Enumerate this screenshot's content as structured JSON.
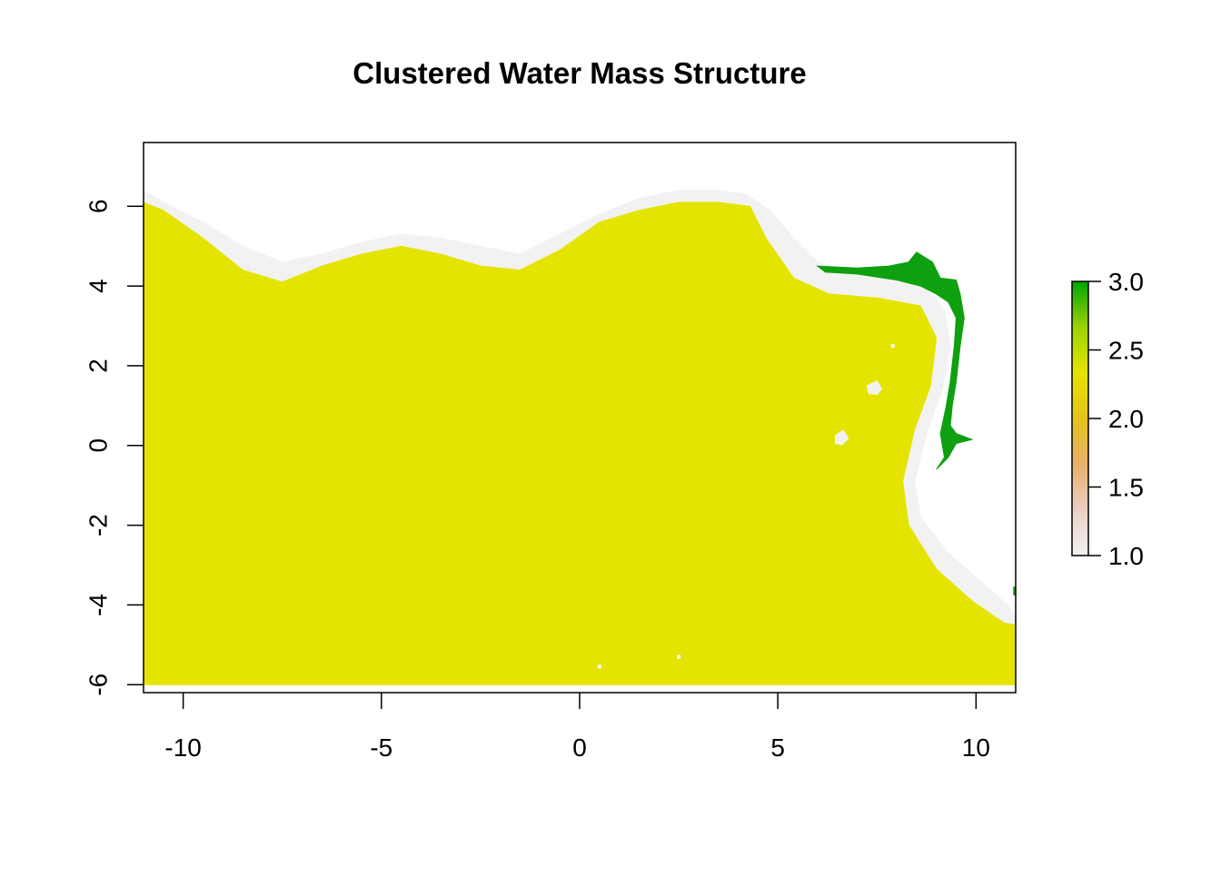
{
  "chart_data": {
    "type": "heatmap",
    "title": "Clustered Water Mass Structure",
    "xlabel": "",
    "ylabel": "",
    "xlim": [
      -11,
      11
    ],
    "ylim": [
      -6.2,
      7.6
    ],
    "x_ticks": [
      -10,
      -5,
      0,
      5,
      10
    ],
    "x_tick_labels": [
      "-10",
      "-5",
      "0",
      "5",
      "10"
    ],
    "y_ticks": [
      -6,
      -4,
      -2,
      0,
      2,
      4,
      6
    ],
    "y_tick_labels": [
      "-6",
      "-4",
      "-2",
      "0",
      "2",
      "4",
      "6"
    ],
    "legend": {
      "placement": "right",
      "range": [
        1.0,
        3.0
      ],
      "ticks": [
        1.0,
        1.5,
        2.0,
        2.5,
        3.0
      ],
      "tick_labels": [
        "1.0",
        "1.5",
        "2.0",
        "2.5",
        "3.0"
      ],
      "colors": [
        "#f2f2f2",
        "#eccfc4",
        "#e8b06a",
        "#e6c21a",
        "#e5e400",
        "#9cd200",
        "#00a600"
      ]
    },
    "clusters": [
      {
        "value": 1,
        "color": "#f2f2f2"
      },
      {
        "value": 2,
        "color": "#e5e400"
      },
      {
        "value": 3,
        "color": "#0fa00f"
      }
    ],
    "regions": [
      {
        "cluster": 1,
        "outline": [
          [
            -11,
            6.4
          ],
          [
            -10.5,
            6.1
          ],
          [
            -9.5,
            5.6
          ],
          [
            -8.5,
            5.0
          ],
          [
            -7.5,
            4.6
          ],
          [
            -6.5,
            4.8
          ],
          [
            -5.5,
            5.1
          ],
          [
            -4.5,
            5.3
          ],
          [
            -3.5,
            5.2
          ],
          [
            -2.5,
            5.0
          ],
          [
            -1.5,
            4.8
          ],
          [
            -0.5,
            5.3
          ],
          [
            0.5,
            5.8
          ],
          [
            1.5,
            6.2
          ],
          [
            2.5,
            6.4
          ],
          [
            3.5,
            6.4
          ],
          [
            4.2,
            6.3
          ],
          [
            4.8,
            5.9
          ],
          [
            5.4,
            5.2
          ],
          [
            6.0,
            4.6
          ],
          [
            7.0,
            4.3
          ],
          [
            8.0,
            4.15
          ],
          [
            8.7,
            4.0
          ],
          [
            9.2,
            3.4
          ],
          [
            9.35,
            2.5
          ],
          [
            9.15,
            1.4
          ],
          [
            8.75,
            0.3
          ],
          [
            8.45,
            -0.9
          ],
          [
            8.6,
            -1.8
          ],
          [
            9.3,
            -2.7
          ],
          [
            10.1,
            -3.4
          ],
          [
            10.8,
            -4.0
          ],
          [
            11,
            -4.3
          ],
          [
            11,
            -4.5
          ],
          [
            10.7,
            -4.45
          ],
          [
            9.9,
            -3.9
          ],
          [
            9.0,
            -3.1
          ],
          [
            8.3,
            -2.0
          ],
          [
            8.15,
            -0.9
          ],
          [
            8.45,
            0.4
          ],
          [
            8.85,
            1.5
          ],
          [
            9.0,
            2.7
          ],
          [
            8.6,
            3.5
          ],
          [
            7.5,
            3.7
          ],
          [
            6.3,
            3.8
          ],
          [
            5.4,
            4.2
          ],
          [
            4.7,
            5.2
          ],
          [
            4.3,
            6.0
          ],
          [
            3.5,
            6.1
          ],
          [
            2.5,
            6.1
          ],
          [
            1.5,
            5.9
          ],
          [
            0.5,
            5.6
          ],
          [
            -0.5,
            4.9
          ],
          [
            -1.5,
            4.4
          ],
          [
            -2.5,
            4.5
          ],
          [
            -3.5,
            4.8
          ],
          [
            -4.5,
            5.0
          ],
          [
            -5.5,
            4.8
          ],
          [
            -6.5,
            4.5
          ],
          [
            -7.5,
            4.1
          ],
          [
            -8.5,
            4.4
          ],
          [
            -9.5,
            5.2
          ],
          [
            -10.5,
            5.9
          ],
          [
            -11,
            6.1
          ]
        ]
      },
      {
        "cluster": 2,
        "outline": [
          [
            -11,
            6.1
          ],
          [
            -10.5,
            5.9
          ],
          [
            -9.5,
            5.2
          ],
          [
            -8.5,
            4.4
          ],
          [
            -7.5,
            4.1
          ],
          [
            -6.5,
            4.5
          ],
          [
            -5.5,
            4.8
          ],
          [
            -4.5,
            5.0
          ],
          [
            -3.5,
            4.8
          ],
          [
            -2.5,
            4.5
          ],
          [
            -1.5,
            4.4
          ],
          [
            -0.5,
            4.9
          ],
          [
            0.5,
            5.6
          ],
          [
            1.5,
            5.9
          ],
          [
            2.5,
            6.1
          ],
          [
            3.5,
            6.1
          ],
          [
            4.3,
            6.0
          ],
          [
            4.7,
            5.2
          ],
          [
            5.4,
            4.2
          ],
          [
            6.3,
            3.8
          ],
          [
            7.5,
            3.7
          ],
          [
            8.6,
            3.5
          ],
          [
            9.0,
            2.7
          ],
          [
            8.85,
            1.5
          ],
          [
            8.45,
            0.4
          ],
          [
            8.15,
            -0.9
          ],
          [
            8.3,
            -2.0
          ],
          [
            9.0,
            -3.1
          ],
          [
            9.9,
            -3.9
          ],
          [
            10.7,
            -4.45
          ],
          [
            11,
            -4.5
          ],
          [
            11,
            -6
          ],
          [
            -11,
            -6
          ]
        ]
      },
      {
        "cluster": 1,
        "outline": [
          [
            7.25,
            1.5
          ],
          [
            7.5,
            1.62
          ],
          [
            7.62,
            1.42
          ],
          [
            7.5,
            1.28
          ],
          [
            7.3,
            1.3
          ]
        ]
      },
      {
        "cluster": 1,
        "outline": [
          [
            6.45,
            0.25
          ],
          [
            6.65,
            0.38
          ],
          [
            6.78,
            0.18
          ],
          [
            6.62,
            0.02
          ],
          [
            6.45,
            0.05
          ]
        ]
      },
      {
        "cluster": 3,
        "outline": [
          [
            6.0,
            4.5
          ],
          [
            7.0,
            4.45
          ],
          [
            7.8,
            4.5
          ],
          [
            8.3,
            4.6
          ],
          [
            8.5,
            4.85
          ],
          [
            8.9,
            4.6
          ],
          [
            9.1,
            4.2
          ],
          [
            9.5,
            4.15
          ],
          [
            9.6,
            3.8
          ],
          [
            9.7,
            3.2
          ],
          [
            9.6,
            2.5
          ],
          [
            9.5,
            1.6
          ],
          [
            9.4,
            1.0
          ],
          [
            9.35,
            0.5
          ],
          [
            9.5,
            0.3
          ],
          [
            9.9,
            0.15
          ],
          [
            9.5,
            0.05
          ],
          [
            9.3,
            -0.3
          ],
          [
            9.0,
            -0.6
          ],
          [
            9.2,
            -0.3
          ],
          [
            9.1,
            0.3
          ],
          [
            9.25,
            1.0
          ],
          [
            9.35,
            1.6
          ],
          [
            9.45,
            2.5
          ],
          [
            9.5,
            3.2
          ],
          [
            9.3,
            3.6
          ],
          [
            9.0,
            3.8
          ],
          [
            8.6,
            4.0
          ],
          [
            8.0,
            4.15
          ],
          [
            7.0,
            4.3
          ],
          [
            6.2,
            4.35
          ]
        ]
      },
      {
        "cluster": 1,
        "outline": [
          [
            8.8,
            3.7
          ],
          [
            9.0,
            3.75
          ],
          [
            9.05,
            3.5
          ],
          [
            8.85,
            3.45
          ]
        ]
      },
      {
        "cluster": 3,
        "outline": [
          [
            10.95,
            -3.55
          ],
          [
            11,
            -3.55
          ],
          [
            11,
            -3.75
          ],
          [
            10.95,
            -3.75
          ]
        ]
      }
    ],
    "specks": [
      [
        7.9,
        2.5
      ],
      [
        2.5,
        -5.3
      ],
      [
        0.5,
        -5.55
      ]
    ]
  }
}
